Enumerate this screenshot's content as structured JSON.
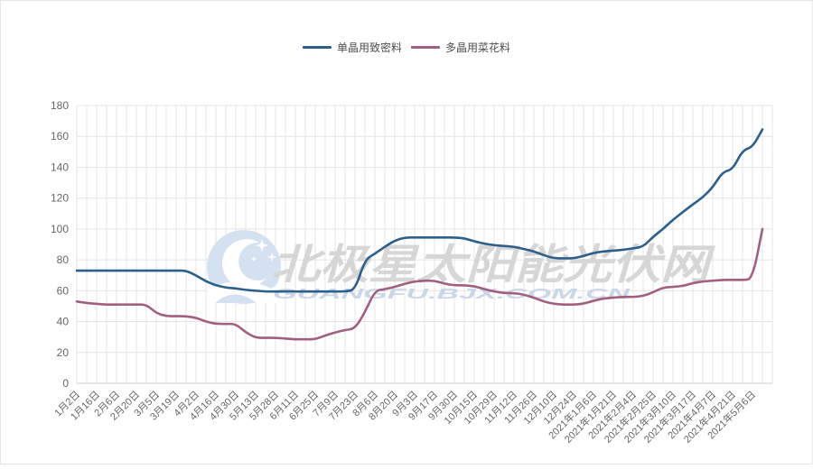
{
  "window": {
    "background": "#ffffff",
    "border_color": "#e6e6e6"
  },
  "legend": {
    "items": [
      {
        "label": "单晶用致密料",
        "color": "#2d5f8b"
      },
      {
        "label": "多晶用菜花料",
        "color": "#a25e80"
      }
    ]
  },
  "watermark": {
    "line1": "北极星太阳能光伏网",
    "line2": "GUANGFU.BJX.COM.CN",
    "logo": "moon-stars-logo",
    "line1_color": "#d6d6d6",
    "line2_color": "#c9d6e8",
    "logo_color": "#d3e1f1"
  },
  "chart_data": {
    "type": "line",
    "title": "",
    "xlabel": "",
    "ylabel": "",
    "ylim": [
      0,
      180
    ],
    "y_ticks": [
      0,
      20,
      40,
      60,
      80,
      100,
      120,
      140,
      160,
      180
    ],
    "grid": true,
    "legend_position": "top-center",
    "grid_color": "#e4e4e4",
    "axis_color": "#cccccc",
    "tick_label_color": "#666666",
    "x_tick_every": 2,
    "x_tick_labels": [
      "1月2日",
      "1月16日",
      "2月6日",
      "2月20日",
      "3月5日",
      "3月19日",
      "4月2日",
      "4月16日",
      "4月30日",
      "5月13日",
      "5月28日",
      "6月11日",
      "6月25日",
      "7月9日",
      "7月23日",
      "8月6日",
      "8月20日",
      "9月3日",
      "9月17日",
      "9月30日",
      "10月15日",
      "10月29日",
      "11月12日",
      "11月26日",
      "12月10日",
      "12月24日",
      "2021年1月6日",
      "2021年1月21日",
      "2021年2月4日",
      "2021年2月25日",
      "2021年3月10日",
      "2021年3月17日",
      "2021年4月7日",
      "2021年4月21日",
      "2021年5月6日"
    ],
    "series": [
      {
        "name": "单晶用致密料",
        "color": "#2d5f8b",
        "values": [
          73,
          73,
          73,
          73,
          73,
          73,
          73,
          73,
          73,
          73,
          73,
          73,
          70,
          66,
          63.5,
          62,
          61.5,
          60.5,
          60,
          59.5,
          59.5,
          59.5,
          59.5,
          59.5,
          59.5,
          59.5,
          59.5,
          59.5,
          60.5,
          80,
          84,
          88.5,
          92.5,
          94.5,
          94.5,
          94.5,
          94.5,
          94.5,
          94.5,
          94,
          92,
          90.5,
          89.5,
          89,
          88.5,
          87,
          85.5,
          83,
          81,
          81,
          81,
          82.5,
          84.5,
          85.5,
          86,
          86.5,
          87.5,
          88.5,
          95,
          100,
          106,
          111,
          116,
          120.5,
          127,
          137,
          138.5,
          151,
          153,
          164.5
        ]
      },
      {
        "name": "多晶用菜花料",
        "color": "#a25e80",
        "values": [
          53,
          52,
          51.5,
          51,
          51,
          51,
          51,
          51,
          45.5,
          43.5,
          43.5,
          43.5,
          42.5,
          40,
          38.5,
          38.5,
          38.5,
          33,
          29.5,
          29.5,
          29.5,
          29,
          28.5,
          28.5,
          28.5,
          31,
          33,
          34.5,
          35.5,
          46,
          60,
          61,
          62.5,
          64.5,
          66,
          66.5,
          66.5,
          64.5,
          63.5,
          63.5,
          63,
          61,
          59.5,
          58.5,
          58.5,
          57.5,
          55.5,
          53,
          51.5,
          51,
          51,
          51.5,
          53.5,
          55,
          55.5,
          56,
          56,
          56.5,
          59,
          62,
          62.5,
          63,
          65,
          66,
          66.5,
          67,
          67,
          67,
          67.5,
          100
        ]
      }
    ]
  }
}
